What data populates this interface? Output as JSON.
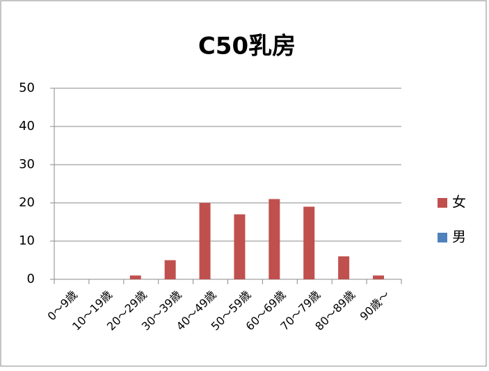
{
  "chart_data": {
    "type": "bar",
    "title": "C50乳房",
    "categories": [
      "0～9歳",
      "10～19歳",
      "20～29歳",
      "30～39歳",
      "40～49歳",
      "50～59歳",
      "60～69歳",
      "70～79歳",
      "80～89歳",
      "90歳～"
    ],
    "series": [
      {
        "name": "女",
        "color": "#c0504d",
        "values": [
          0,
          0,
          1,
          5,
          20,
          17,
          21,
          19,
          6,
          1
        ]
      },
      {
        "name": "男",
        "color": "#4f81bd",
        "values": [
          0,
          0,
          0,
          0,
          0,
          0,
          0,
          0,
          0,
          0
        ]
      }
    ],
    "ylim": [
      0,
      50
    ],
    "yticks": [
      0,
      10,
      20,
      30,
      40,
      50
    ],
    "grid": true,
    "legend": "right"
  }
}
